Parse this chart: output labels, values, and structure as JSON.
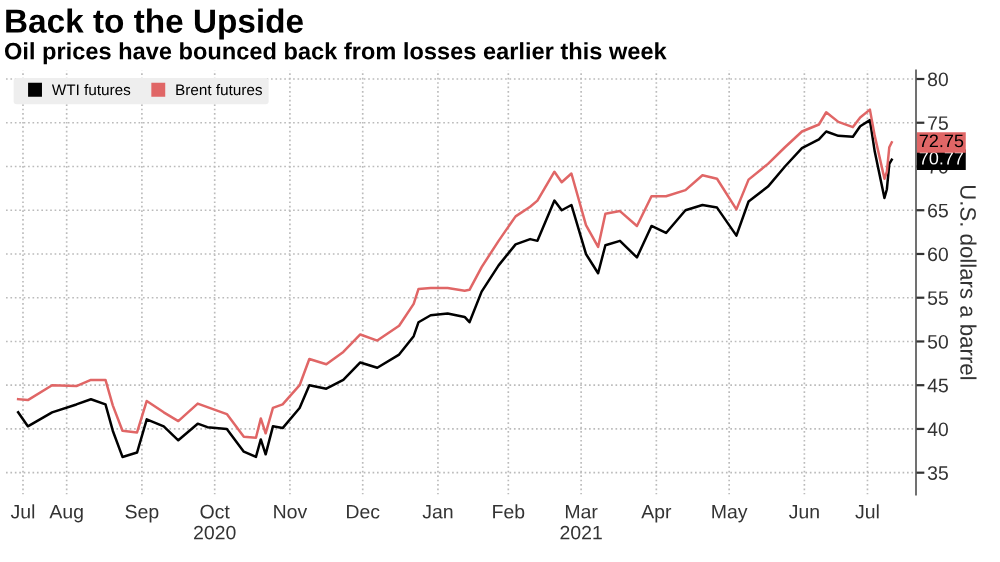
{
  "chart_data": {
    "type": "line",
    "title": "Back to the Upside",
    "subtitle": "Oil prices have bounced back from losses earlier this week",
    "ylabel": "U.S. dollars a barrel",
    "x": [
      "2020-07-27",
      "2020-07-31",
      "2020-08-10",
      "2020-08-20",
      "2020-08-26",
      "2020-09-01",
      "2020-09-04",
      "2020-09-08",
      "2020-09-14",
      "2020-09-18",
      "2020-09-25",
      "2020-10-01",
      "2020-10-09",
      "2020-10-13",
      "2020-10-21",
      "2020-10-28",
      "2020-11-02",
      "2020-11-04",
      "2020-11-06",
      "2020-11-09",
      "2020-11-13",
      "2020-11-20",
      "2020-11-24",
      "2020-12-01",
      "2020-12-08",
      "2020-12-15",
      "2020-12-22",
      "2020-12-31",
      "2021-01-06",
      "2021-01-08",
      "2021-01-13",
      "2021-01-20",
      "2021-01-27",
      "2021-01-29",
      "2021-02-03",
      "2021-02-10",
      "2021-02-17",
      "2021-02-23",
      "2021-02-26",
      "2021-03-05",
      "2021-03-08",
      "2021-03-12",
      "2021-03-18",
      "2021-03-23",
      "2021-03-26",
      "2021-04-01",
      "2021-04-08",
      "2021-04-14",
      "2021-04-20",
      "2021-04-28",
      "2021-05-05",
      "2021-05-11",
      "2021-05-19",
      "2021-05-24",
      "2021-06-01",
      "2021-06-08",
      "2021-06-15",
      "2021-06-22",
      "2021-06-25",
      "2021-06-30",
      "2021-07-06",
      "2021-07-09",
      "2021-07-13",
      "2021-07-15",
      "2021-07-19",
      "2021-07-20",
      "2021-07-21",
      "2021-07-22"
    ],
    "series": [
      {
        "name": "WTI futures",
        "color": "#000000",
        "values": [
          41.9,
          40.3,
          41.9,
          42.8,
          43.4,
          42.8,
          39.8,
          36.8,
          37.3,
          41.1,
          40.3,
          38.7,
          40.6,
          40.2,
          40.0,
          37.4,
          36.8,
          38.8,
          37.1,
          40.3,
          40.1,
          42.4,
          45.0,
          44.6,
          45.6,
          47.6,
          47.0,
          48.5,
          50.6,
          52.2,
          53.0,
          53.2,
          52.8,
          52.2,
          55.7,
          58.7,
          61.1,
          61.7,
          61.5,
          66.1,
          65.0,
          65.6,
          60.0,
          57.8,
          61.0,
          61.5,
          59.6,
          63.2,
          62.4,
          65.0,
          65.6,
          65.3,
          62.1,
          66.0,
          67.7,
          70.0,
          72.1,
          73.1,
          74.0,
          73.5,
          73.4,
          74.6,
          75.3,
          71.7,
          66.4,
          67.4,
          70.3,
          70.77
        ],
        "value_labels": [
          null,
          null,
          null,
          null,
          null,
          null,
          null,
          null,
          null,
          null,
          null,
          null,
          null,
          null,
          null,
          null,
          null,
          null,
          null,
          null,
          null,
          null,
          null,
          null,
          null,
          null,
          null,
          null,
          null,
          null,
          null,
          null,
          null,
          null,
          null,
          null,
          null,
          null,
          null,
          null,
          null,
          null,
          null,
          null,
          null,
          null,
          null,
          null,
          null,
          null,
          null,
          null,
          null,
          null,
          null,
          null,
          null,
          null,
          null,
          null,
          null,
          null,
          null,
          null,
          null,
          null,
          null,
          "70.77"
        ]
      },
      {
        "name": "Brent futures",
        "color": "#e06666",
        "values": [
          43.4,
          43.3,
          45.0,
          44.9,
          45.6,
          45.6,
          42.7,
          39.8,
          39.6,
          43.2,
          41.9,
          40.9,
          42.9,
          42.5,
          41.7,
          39.1,
          39.0,
          41.2,
          39.5,
          42.4,
          42.8,
          45.0,
          48.0,
          47.4,
          48.8,
          50.8,
          50.1,
          51.8,
          54.3,
          56.0,
          56.1,
          56.1,
          55.8,
          55.9,
          58.5,
          61.5,
          64.3,
          65.4,
          66.1,
          69.4,
          68.2,
          69.2,
          63.3,
          60.8,
          64.6,
          64.9,
          63.2,
          66.6,
          66.6,
          67.3,
          69.0,
          68.6,
          65.1,
          68.5,
          70.3,
          72.2,
          74.0,
          74.8,
          76.2,
          75.1,
          74.5,
          75.6,
          76.5,
          73.5,
          68.6,
          69.4,
          72.2,
          72.75
        ],
        "value_labels": [
          null,
          null,
          null,
          null,
          null,
          null,
          null,
          null,
          null,
          null,
          null,
          null,
          null,
          null,
          null,
          null,
          null,
          null,
          null,
          null,
          null,
          null,
          null,
          null,
          null,
          null,
          null,
          null,
          null,
          null,
          null,
          null,
          null,
          null,
          null,
          null,
          null,
          null,
          null,
          null,
          null,
          null,
          null,
          null,
          null,
          null,
          null,
          null,
          null,
          null,
          null,
          null,
          null,
          null,
          null,
          null,
          null,
          null,
          null,
          null,
          null,
          null,
          null,
          null,
          null,
          null,
          null,
          "72.75"
        ]
      }
    ],
    "xlim": [
      "2020-07-22",
      "2021-08-01"
    ],
    "xticks": [
      {
        "value": "2020-07-29",
        "label": "Jul"
      },
      {
        "value": "2020-08-16",
        "label": "Aug"
      },
      {
        "value": "2020-09-16",
        "label": "Sep"
      },
      {
        "value": "2020-10-16",
        "label": "Oct\n2020"
      },
      {
        "value": "2020-11-16",
        "label": "Nov"
      },
      {
        "value": "2020-12-16",
        "label": "Dec"
      },
      {
        "value": "2021-01-16",
        "label": "Jan"
      },
      {
        "value": "2021-02-14",
        "label": "Feb"
      },
      {
        "value": "2021-03-16",
        "label": "Mar\n2021"
      },
      {
        "value": "2021-04-16",
        "label": "Apr"
      },
      {
        "value": "2021-05-16",
        "label": "May"
      },
      {
        "value": "2021-06-16",
        "label": "Jun"
      },
      {
        "value": "2021-07-12",
        "label": "Jul"
      }
    ],
    "ylim": [
      32.5,
      81
    ],
    "yticks": [
      35,
      40,
      45,
      50,
      55,
      60,
      65,
      70,
      75,
      80
    ],
    "grid": true,
    "legend": "top left",
    "marker": "none",
    "line_style": "solid"
  }
}
